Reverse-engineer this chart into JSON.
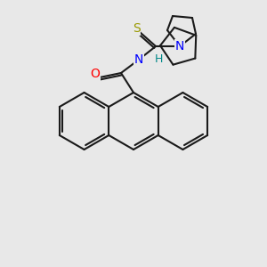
{
  "bg_color": "#e8e8e8",
  "line_color": "#1a1a1a",
  "bond_lw": 1.5,
  "atom_colors": {
    "O": "#ff0000",
    "N": "#0000ff",
    "S": "#999900",
    "H": "#008888"
  },
  "font_size": 9
}
